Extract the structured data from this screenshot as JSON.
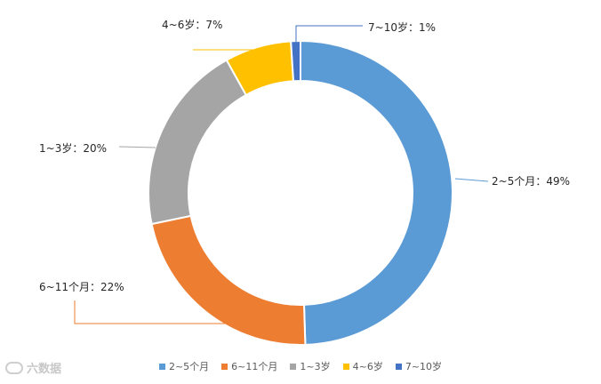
{
  "chart_data": {
    "type": "pie",
    "donut": true,
    "slices": [
      {
        "label": "2~5个月",
        "value": 49,
        "color": "#5B9BD5",
        "data_label": "2~5个月：49%"
      },
      {
        "label": "6~11个月",
        "value": 22,
        "color": "#ED7D31",
        "data_label": "6~11个月：22%"
      },
      {
        "label": "1~3岁",
        "value": 20,
        "color": "#A5A5A5",
        "data_label": "1~3岁：20%"
      },
      {
        "label": "4~6岁",
        "value": 7,
        "color": "#FFC000",
        "data_label": "4~6岁：7%"
      },
      {
        "label": "7~10岁",
        "value": 1,
        "color": "#4472C4",
        "data_label": "7~10岁：1%"
      }
    ],
    "legend_position": "bottom"
  },
  "watermark": {
    "text": "六数据"
  }
}
